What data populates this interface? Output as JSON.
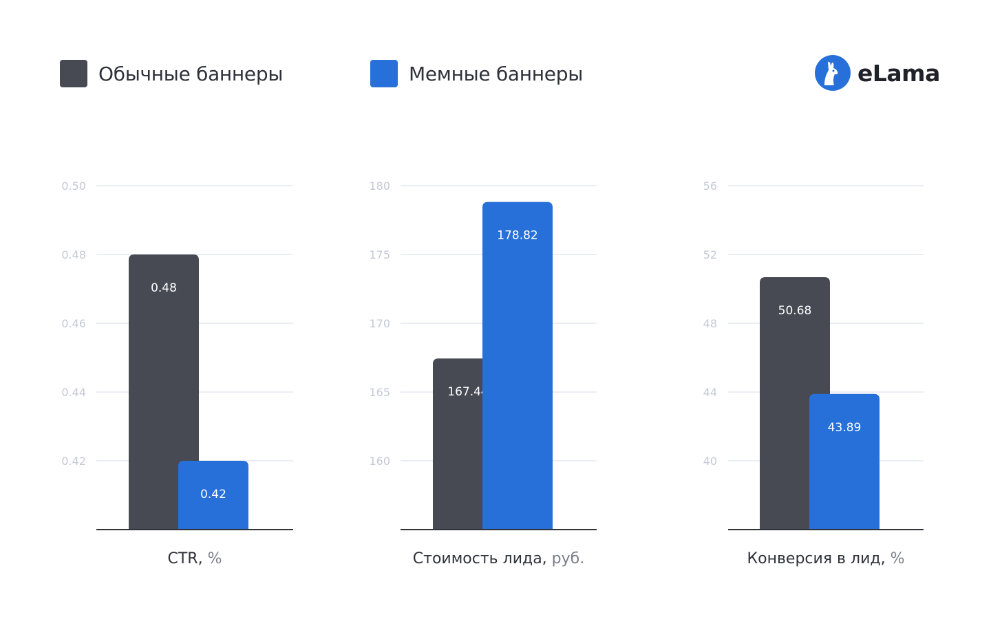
{
  "colors": {
    "regular": "#474a53",
    "meme": "#2770d9",
    "grid": "#e4e7ef",
    "axis": "#2f323a"
  },
  "legend": {
    "items": [
      {
        "label": "Обычные баннеры",
        "color": "#474a53"
      },
      {
        "label": "Мемные баннеры",
        "color": "#2770d9"
      }
    ]
  },
  "logo": {
    "text": "eLama",
    "icon": "llama-icon"
  },
  "chart_data": [
    {
      "type": "bar",
      "title": "",
      "xlabel": "CTR",
      "unit": "%",
      "ylim": [
        0.4,
        0.5
      ],
      "yticks": [
        "0.50",
        "0.48",
        "0.46",
        "0.44",
        "0.42"
      ],
      "ytick_values": [
        0.5,
        0.48,
        0.46,
        0.44,
        0.42
      ],
      "series": [
        {
          "name": "Обычные баннеры",
          "value": 0.48,
          "label": "0.48"
        },
        {
          "name": "Мемные баннеры",
          "value": 0.42,
          "label": "0.42"
        }
      ],
      "grid": true
    },
    {
      "type": "bar",
      "title": "",
      "xlabel": "Стоимость лида",
      "unit": "руб.",
      "ylim": [
        155,
        180
      ],
      "yticks": [
        "180",
        "175",
        "170",
        "165",
        "160"
      ],
      "ytick_values": [
        180,
        175,
        170,
        165,
        160
      ],
      "series": [
        {
          "name": "Обычные баннеры",
          "value": 167.44,
          "label": "167.44"
        },
        {
          "name": "Мемные баннеры",
          "value": 178.82,
          "label": "178.82"
        }
      ],
      "grid": true
    },
    {
      "type": "bar",
      "title": "",
      "xlabel": "Конверсия в лид",
      "unit": "%",
      "ylim": [
        36,
        56
      ],
      "yticks": [
        "56",
        "52",
        "48",
        "44",
        "40"
      ],
      "ytick_values": [
        56,
        52,
        48,
        44,
        40
      ],
      "series": [
        {
          "name": "Обычные баннеры",
          "value": 50.68,
          "label": "50.68"
        },
        {
          "name": "Мемные баннеры",
          "value": 43.89,
          "label": "43.89"
        }
      ],
      "grid": true
    }
  ]
}
